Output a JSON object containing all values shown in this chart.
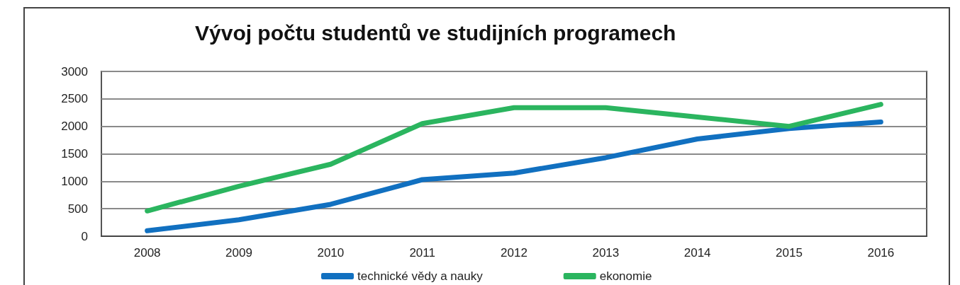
{
  "chart_data": {
    "type": "line",
    "title": "Vývoj počtu studentů ve studijních programech",
    "categories": [
      "2008",
      "2009",
      "2010",
      "2011",
      "2012",
      "2013",
      "2014",
      "2015",
      "2016"
    ],
    "series": [
      {
        "name": "technické vědy a nauky",
        "color": "#1170c0",
        "values": [
          100,
          300,
          580,
          1030,
          1150,
          1430,
          1770,
          1960,
          2080
        ]
      },
      {
        "name": "ekonomie",
        "color": "#2bb55f",
        "values": [
          460,
          910,
          1310,
          2050,
          2340,
          2340,
          2170,
          2000,
          2400
        ]
      }
    ],
    "ylim": [
      0,
      3000
    ],
    "yticks": [
      0,
      500,
      1000,
      1500,
      2000,
      2500,
      3000
    ],
    "grid": "y",
    "legend": "bottom",
    "marker": "none",
    "line_style": "solid"
  }
}
